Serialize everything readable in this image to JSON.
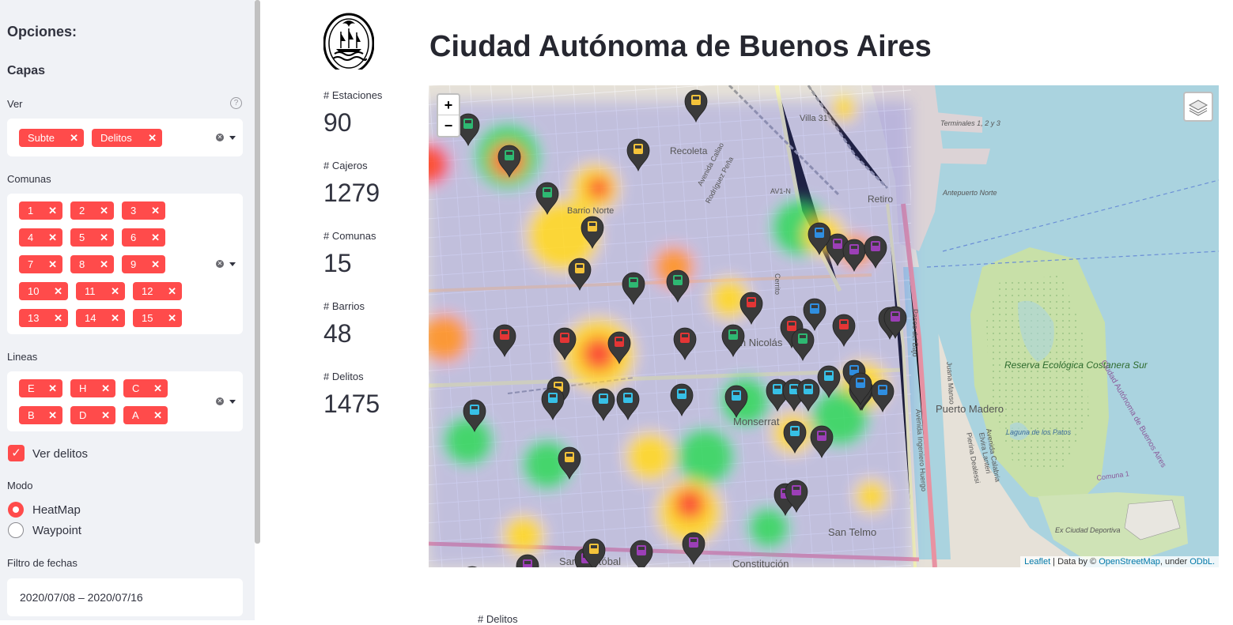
{
  "sidebar": {
    "title": "Opciones:",
    "layers_header": "Capas",
    "ver_label": "Ver",
    "ver_selected": [
      "Subte",
      "Delitos"
    ],
    "comunas_label": "Comunas",
    "comunas_selected": [
      "1",
      "2",
      "3",
      "4",
      "5",
      "6",
      "7",
      "8",
      "9",
      "10",
      "11",
      "12",
      "13",
      "14",
      "15"
    ],
    "lineas_label": "Lineas",
    "lineas_selected": [
      "E",
      "H",
      "C",
      "B",
      "D",
      "A"
    ],
    "ver_delitos_label": "Ver delitos",
    "ver_delitos_checked": true,
    "modo_label": "Modo",
    "modo_options": [
      "HeatMap",
      "Waypoint"
    ],
    "modo_selected": "HeatMap",
    "fecha_label": "Filtro de fechas",
    "fecha_value": "2020/07/08 – 2020/07/16"
  },
  "main": {
    "title": "Ciudad Autónoma de Buenos Aires",
    "metrics": [
      {
        "label": "# Estaciones",
        "value": "90"
      },
      {
        "label": "# Cajeros",
        "value": "1279"
      },
      {
        "label": "# Comunas",
        "value": "15"
      },
      {
        "label": "# Barrios",
        "value": "48"
      },
      {
        "label": "# Delitos",
        "value": "1475"
      }
    ],
    "bottom_label": "# Delitos"
  },
  "map": {
    "zoom_in": "+",
    "zoom_out": "−",
    "attribution_leaflet": "Leaflet",
    "attribution_middle": " | Data by © ",
    "attribution_osm": "OpenStreetMap",
    "attribution_under": ", under ",
    "attribution_odbl": "ODbL.",
    "place_labels": [
      "Villa 31",
      "Recoleta",
      "Retiro",
      "Barrio Norte",
      "San Nicolás",
      "Monserrat",
      "Puerto Madero",
      "San Telmo",
      "San Cristóbal",
      "Constitución",
      "Terminales 1, 2 y 3",
      "Antepuerto Norte",
      "Reserva Ecológica Costanera Sur",
      "Laguna de los Patos",
      "Ex Ciudad Deportiva",
      "Ciudad Autónoma de Buenos Aires",
      "Comuna 1",
      "Avenida Callao",
      "Rodríguez Peña",
      "AV1-N",
      "Cerrito",
      "Paseo del Bajo",
      "Avenida Ingeniero Huergo",
      "Juana Manso",
      "Avenida Calabria",
      "Pierina Dealessi",
      "Elvira Lanteri"
    ],
    "line_colors": {
      "A": "#37c0e6",
      "B": "#e43535",
      "C": "#2f8ee0",
      "D": "#2eb872",
      "E": "#9c3fb7",
      "H": "#f4c33a"
    },
    "markers": [
      {
        "line": "D"
      },
      {
        "line": "H"
      },
      {
        "line": "H"
      },
      {
        "line": "D"
      },
      {
        "line": "D"
      },
      {
        "line": "H"
      },
      {
        "line": "H"
      },
      {
        "line": "D"
      },
      {
        "line": "D"
      },
      {
        "line": "B"
      },
      {
        "line": "B"
      },
      {
        "line": "B"
      },
      {
        "line": "B"
      },
      {
        "line": "B"
      },
      {
        "line": "D"
      },
      {
        "line": "C"
      },
      {
        "line": "B"
      },
      {
        "line": "D"
      },
      {
        "line": "B"
      },
      {
        "line": "E"
      },
      {
        "line": "C"
      },
      {
        "line": "E"
      },
      {
        "line": "E"
      },
      {
        "line": "E"
      },
      {
        "line": "C"
      },
      {
        "line": "A"
      },
      {
        "line": "H"
      },
      {
        "line": "A"
      },
      {
        "line": "A"
      },
      {
        "line": "A"
      },
      {
        "line": "A"
      },
      {
        "line": "A"
      },
      {
        "line": "A"
      },
      {
        "line": "A"
      },
      {
        "line": "A"
      },
      {
        "line": "A"
      },
      {
        "line": "A"
      },
      {
        "line": "E"
      },
      {
        "line": "C"
      },
      {
        "line": "E"
      },
      {
        "line": "H"
      },
      {
        "line": "E"
      },
      {
        "line": "C"
      },
      {
        "line": "E"
      },
      {
        "line": "C"
      },
      {
        "line": "E"
      },
      {
        "line": "E"
      },
      {
        "line": "E"
      },
      {
        "line": "E"
      },
      {
        "line": "E"
      },
      {
        "line": "E"
      },
      {
        "line": "H"
      }
    ]
  }
}
